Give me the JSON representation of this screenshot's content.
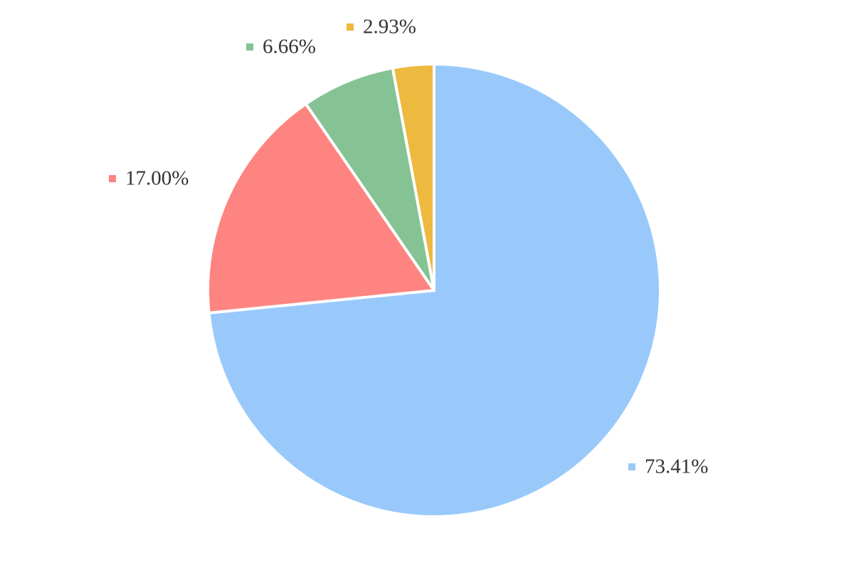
{
  "chart_data": {
    "type": "pie",
    "values": [
      73.41,
      17.0,
      6.66,
      2.93
    ],
    "value_labels": [
      "73.41%",
      "17.00%",
      "6.66%",
      "2.93%"
    ],
    "colors": [
      "#99c9fb",
      "#fd8480",
      "#85c395",
      "#edb93f"
    ]
  }
}
